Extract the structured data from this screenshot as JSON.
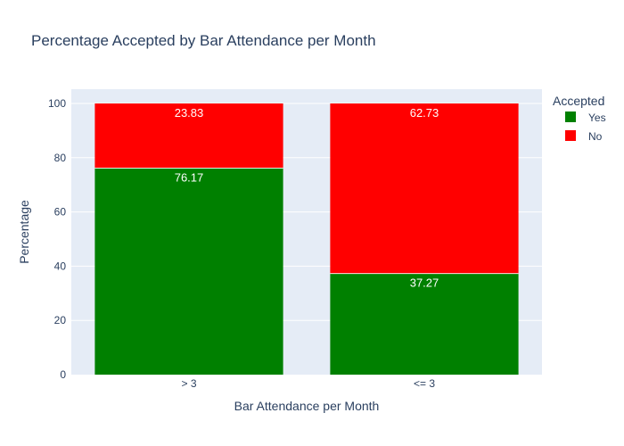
{
  "chart_data": {
    "type": "bar",
    "stacked": true,
    "title": "Percentage Accepted by Bar Attendance per Month",
    "xlabel": "Bar Attendance per Month",
    "ylabel": "Percentage",
    "categories": [
      "> 3",
      "<= 3"
    ],
    "ylim": [
      0,
      100
    ],
    "yticks": [
      "0",
      "20",
      "40",
      "60",
      "80",
      "100"
    ],
    "grid": true,
    "legend_title": "Accepted",
    "legend_position": "top-right",
    "series": [
      {
        "name": "Yes",
        "color": "#008000",
        "values": [
          76.17,
          37.27
        ],
        "labels": [
          "76.17",
          "37.27"
        ]
      },
      {
        "name": "No",
        "color": "#ff0000",
        "values": [
          23.83,
          62.73
        ],
        "labels": [
          "23.83",
          "62.73"
        ]
      }
    ],
    "colors": {
      "plot_background": "#e5ecf6",
      "grid": "#ffffff",
      "text": "#2a3f5f"
    }
  }
}
